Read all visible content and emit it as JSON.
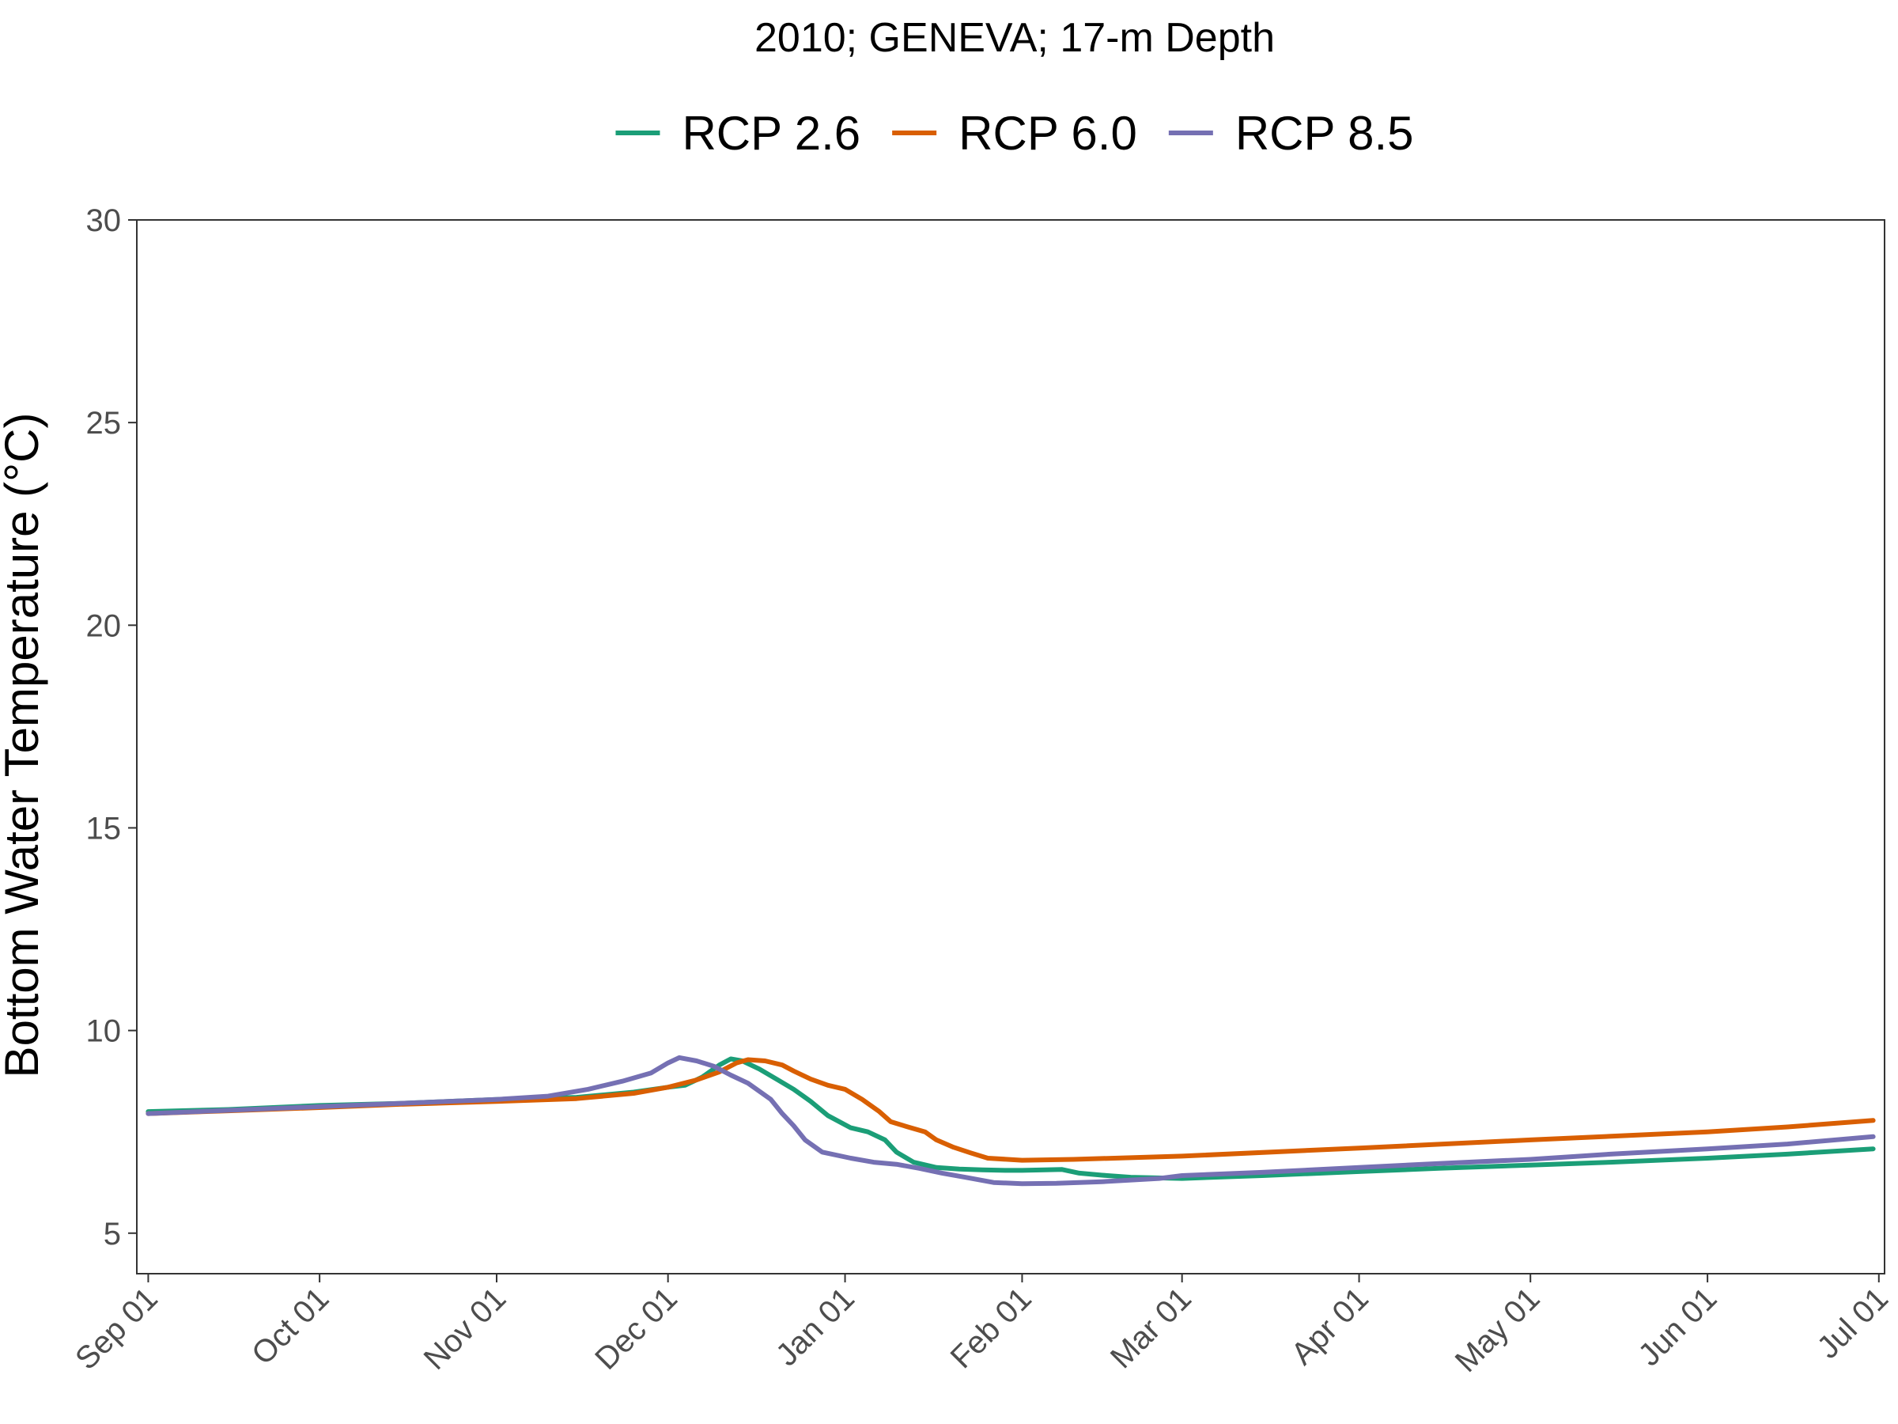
{
  "chart_data": {
    "type": "line",
    "title": "2010; GENEVA; 17-m Depth",
    "xlabel": "",
    "ylabel": "Bottom Water Temperature (°C)",
    "ylim": [
      4,
      30
    ],
    "yticks": [
      5,
      10,
      15,
      20,
      25,
      30
    ],
    "xlim": [
      "2010-08-30",
      "2011-07-02"
    ],
    "xticks": [
      {
        "date": "2010-09-01",
        "label": "Sep 01"
      },
      {
        "date": "2010-10-01",
        "label": "Oct 01"
      },
      {
        "date": "2010-11-01",
        "label": "Nov 01"
      },
      {
        "date": "2010-12-01",
        "label": "Dec 01"
      },
      {
        "date": "2011-01-01",
        "label": "Jan 01"
      },
      {
        "date": "2011-02-01",
        "label": "Feb 01"
      },
      {
        "date": "2011-03-01",
        "label": "Mar 01"
      },
      {
        "date": "2011-04-01",
        "label": "Apr 01"
      },
      {
        "date": "2011-05-01",
        "label": "May 01"
      },
      {
        "date": "2011-06-01",
        "label": "Jun 01"
      },
      {
        "date": "2011-07-01",
        "label": "Jul 01"
      }
    ],
    "grid": false,
    "legend_position": "top",
    "series": [
      {
        "name": "RCP 2.6",
        "color": "#1b9e77",
        "points": [
          [
            "2010-09-01",
            8.0
          ],
          [
            "2010-09-15",
            8.05
          ],
          [
            "2010-10-01",
            8.15
          ],
          [
            "2010-10-15",
            8.2
          ],
          [
            "2010-11-01",
            8.3
          ],
          [
            "2010-11-15",
            8.35
          ],
          [
            "2010-11-25",
            8.48
          ],
          [
            "2010-12-01",
            8.6
          ],
          [
            "2010-12-04",
            8.65
          ],
          [
            "2010-12-07",
            8.85
          ],
          [
            "2010-12-10",
            9.15
          ],
          [
            "2010-12-12",
            9.3
          ],
          [
            "2010-12-14",
            9.25
          ],
          [
            "2010-12-17",
            9.05
          ],
          [
            "2010-12-20",
            8.8
          ],
          [
            "2010-12-23",
            8.55
          ],
          [
            "2010-12-26",
            8.25
          ],
          [
            "2010-12-29",
            7.9
          ],
          [
            "2011-01-02",
            7.6
          ],
          [
            "2011-01-05",
            7.5
          ],
          [
            "2011-01-08",
            7.3
          ],
          [
            "2011-01-10",
            7.0
          ],
          [
            "2011-01-13",
            6.75
          ],
          [
            "2011-01-17",
            6.62
          ],
          [
            "2011-01-21",
            6.58
          ],
          [
            "2011-01-25",
            6.56
          ],
          [
            "2011-01-29",
            6.55
          ],
          [
            "2011-02-01",
            6.55
          ],
          [
            "2011-02-05",
            6.56
          ],
          [
            "2011-02-08",
            6.57
          ],
          [
            "2011-02-11",
            6.48
          ],
          [
            "2011-02-15",
            6.43
          ],
          [
            "2011-02-20",
            6.38
          ],
          [
            "2011-03-01",
            6.35
          ],
          [
            "2011-03-15",
            6.42
          ],
          [
            "2011-04-01",
            6.52
          ],
          [
            "2011-04-15",
            6.6
          ],
          [
            "2011-05-01",
            6.68
          ],
          [
            "2011-05-15",
            6.75
          ],
          [
            "2011-06-01",
            6.85
          ],
          [
            "2011-06-15",
            6.95
          ],
          [
            "2011-06-30",
            7.08
          ]
        ]
      },
      {
        "name": "RCP 6.0",
        "color": "#d95f02",
        "points": [
          [
            "2010-09-01",
            7.95
          ],
          [
            "2010-09-15",
            8.02
          ],
          [
            "2010-10-01",
            8.1
          ],
          [
            "2010-10-15",
            8.18
          ],
          [
            "2010-11-01",
            8.25
          ],
          [
            "2010-11-15",
            8.32
          ],
          [
            "2010-11-25",
            8.45
          ],
          [
            "2010-12-01",
            8.6
          ],
          [
            "2010-12-06",
            8.78
          ],
          [
            "2010-12-10",
            8.98
          ],
          [
            "2010-12-13",
            9.2
          ],
          [
            "2010-12-15",
            9.28
          ],
          [
            "2010-12-18",
            9.25
          ],
          [
            "2010-12-21",
            9.15
          ],
          [
            "2010-12-23",
            9.0
          ],
          [
            "2010-12-26",
            8.8
          ],
          [
            "2010-12-29",
            8.65
          ],
          [
            "2011-01-01",
            8.55
          ],
          [
            "2011-01-04",
            8.3
          ],
          [
            "2011-01-07",
            8.0
          ],
          [
            "2011-01-09",
            7.75
          ],
          [
            "2011-01-12",
            7.62
          ],
          [
            "2011-01-15",
            7.5
          ],
          [
            "2011-01-17",
            7.3
          ],
          [
            "2011-01-20",
            7.12
          ],
          [
            "2011-01-23",
            6.98
          ],
          [
            "2011-01-26",
            6.85
          ],
          [
            "2011-02-01",
            6.8
          ],
          [
            "2011-02-10",
            6.82
          ],
          [
            "2011-03-01",
            6.9
          ],
          [
            "2011-04-01",
            7.1
          ],
          [
            "2011-05-01",
            7.3
          ],
          [
            "2011-06-01",
            7.5
          ],
          [
            "2011-06-15",
            7.62
          ],
          [
            "2011-06-30",
            7.78
          ]
        ]
      },
      {
        "name": "RCP 8.5",
        "color": "#7570b3",
        "points": [
          [
            "2010-09-01",
            7.95
          ],
          [
            "2010-09-15",
            8.03
          ],
          [
            "2010-10-01",
            8.12
          ],
          [
            "2010-10-15",
            8.2
          ],
          [
            "2010-11-01",
            8.3
          ],
          [
            "2010-11-10",
            8.38
          ],
          [
            "2010-11-17",
            8.55
          ],
          [
            "2010-11-23",
            8.75
          ],
          [
            "2010-11-28",
            8.95
          ],
          [
            "2010-12-01",
            9.2
          ],
          [
            "2010-12-03",
            9.33
          ],
          [
            "2010-12-06",
            9.25
          ],
          [
            "2010-12-09",
            9.12
          ],
          [
            "2010-12-12",
            8.9
          ],
          [
            "2010-12-15",
            8.7
          ],
          [
            "2010-12-19",
            8.3
          ],
          [
            "2010-12-21",
            7.95
          ],
          [
            "2010-12-23",
            7.65
          ],
          [
            "2010-12-25",
            7.3
          ],
          [
            "2010-12-28",
            7.0
          ],
          [
            "2011-01-02",
            6.85
          ],
          [
            "2011-01-06",
            6.75
          ],
          [
            "2011-01-10",
            6.7
          ],
          [
            "2011-01-14",
            6.6
          ],
          [
            "2011-01-18",
            6.48
          ],
          [
            "2011-01-22",
            6.38
          ],
          [
            "2011-01-27",
            6.25
          ],
          [
            "2011-02-01",
            6.22
          ],
          [
            "2011-02-07",
            6.23
          ],
          [
            "2011-02-15",
            6.27
          ],
          [
            "2011-02-25",
            6.35
          ],
          [
            "2011-03-01",
            6.42
          ],
          [
            "2011-03-15",
            6.5
          ],
          [
            "2011-04-01",
            6.62
          ],
          [
            "2011-04-15",
            6.72
          ],
          [
            "2011-05-01",
            6.82
          ],
          [
            "2011-05-15",
            6.95
          ],
          [
            "2011-06-01",
            7.08
          ],
          [
            "2011-06-15",
            7.2
          ],
          [
            "2011-06-30",
            7.38
          ]
        ]
      }
    ]
  }
}
